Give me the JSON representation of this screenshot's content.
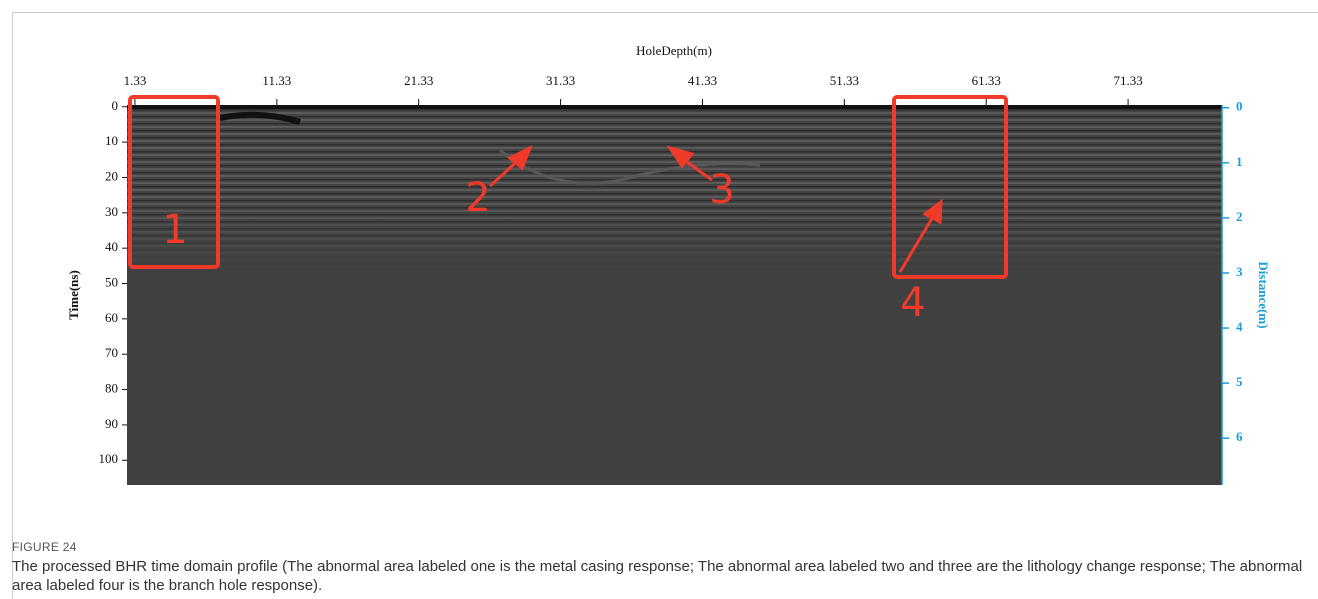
{
  "figure": {
    "top_axis": {
      "title": "HoleDepth(m)",
      "ticks": [
        1.33,
        11.33,
        21.33,
        31.33,
        41.33,
        51.33,
        61.33,
        71.33
      ],
      "lim": [
        0.77,
        77.95
      ]
    },
    "left_axis": {
      "title": "Time(ns)",
      "ticks": [
        0,
        10,
        20,
        30,
        40,
        50,
        60,
        70,
        80,
        90,
        100
      ],
      "lim": [
        -0.5,
        107
      ]
    },
    "right_axis": {
      "title": "Distance(m)",
      "ticks": [
        0,
        1,
        2,
        3,
        4,
        5,
        6
      ],
      "lim": [
        -0.05,
        6.85
      ]
    },
    "annotations": [
      "1",
      "2",
      "3",
      "4"
    ]
  },
  "caption": {
    "label": "FIGURE 24",
    "text": "The processed BHR time domain profile (The abnormal area labeled one is the metal casing response; The abnormal area labeled two and three are the lithology change response; The abnormal area labeled four is the branch hole response)."
  }
}
